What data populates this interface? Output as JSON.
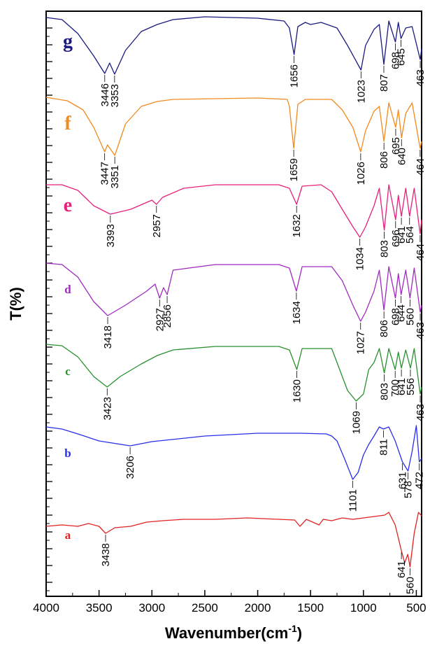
{
  "chart_data": {
    "type": "line",
    "xlabel": "Wavenumber(cm",
    "xlabel_sup": "-1",
    "xlabel_close": ")",
    "ylabel": "T(%)",
    "xlim": [
      4000,
      450
    ],
    "x_reversed": true,
    "xticks": [
      "4000",
      "3500",
      "3000",
      "2500",
      "2000",
      "1500",
      "1000",
      "500"
    ],
    "grid": false,
    "series": [
      {
        "name": "g",
        "color": "#1a1a80",
        "offset": 7,
        "points": [
          [
            4000,
            0.95
          ],
          [
            3850,
            0.92
          ],
          [
            3700,
            0.72
          ],
          [
            3550,
            0.4
          ],
          [
            3446,
            0.15
          ],
          [
            3400,
            0.3
          ],
          [
            3353,
            0.14
          ],
          [
            3250,
            0.48
          ],
          [
            3100,
            0.75
          ],
          [
            2950,
            0.85
          ],
          [
            2800,
            0.92
          ],
          [
            2500,
            0.96
          ],
          [
            2000,
            0.94
          ],
          [
            1750,
            0.9
          ],
          [
            1700,
            0.8
          ],
          [
            1656,
            0.42
          ],
          [
            1620,
            0.82
          ],
          [
            1550,
            0.88
          ],
          [
            1500,
            0.85
          ],
          [
            1400,
            0.88
          ],
          [
            1250,
            0.8
          ],
          [
            1150,
            0.55
          ],
          [
            1023,
            0.2
          ],
          [
            980,
            0.55
          ],
          [
            900,
            0.78
          ],
          [
            850,
            0.85
          ],
          [
            807,
            0.28
          ],
          [
            760,
            0.9
          ],
          [
            698,
            0.6
          ],
          [
            670,
            0.88
          ],
          [
            645,
            0.65
          ],
          [
            600,
            0.8
          ],
          [
            540,
            0.82
          ],
          [
            463,
            0.35
          ],
          [
            450,
            0.5
          ]
        ]
      },
      {
        "name": "f",
        "color": "#f28a1e",
        "offset": 6,
        "points": [
          [
            4000,
            0.98
          ],
          [
            3800,
            0.93
          ],
          [
            3650,
            0.8
          ],
          [
            3550,
            0.55
          ],
          [
            3447,
            0.2
          ],
          [
            3420,
            0.3
          ],
          [
            3351,
            0.15
          ],
          [
            3250,
            0.6
          ],
          [
            3100,
            0.85
          ],
          [
            2950,
            0.92
          ],
          [
            2800,
            0.95
          ],
          [
            2000,
            0.97
          ],
          [
            1720,
            0.95
          ],
          [
            1700,
            0.85
          ],
          [
            1659,
            0.25
          ],
          [
            1620,
            0.88
          ],
          [
            1550,
            0.95
          ],
          [
            1300,
            0.95
          ],
          [
            1200,
            0.8
          ],
          [
            1100,
            0.55
          ],
          [
            1026,
            0.2
          ],
          [
            980,
            0.5
          ],
          [
            900,
            0.78
          ],
          [
            850,
            0.85
          ],
          [
            806,
            0.35
          ],
          [
            760,
            0.9
          ],
          [
            695,
            0.55
          ],
          [
            670,
            0.8
          ],
          [
            640,
            0.4
          ],
          [
            600,
            0.75
          ],
          [
            540,
            0.9
          ],
          [
            464,
            0.25
          ],
          [
            450,
            0.35
          ]
        ]
      },
      {
        "name": "e",
        "color": "#e8207a",
        "offset": 5,
        "points": [
          [
            4000,
            0.9
          ],
          [
            3850,
            0.9
          ],
          [
            3700,
            0.82
          ],
          [
            3550,
            0.6
          ],
          [
            3393,
            0.48
          ],
          [
            3200,
            0.55
          ],
          [
            3000,
            0.68
          ],
          [
            2957,
            0.62
          ],
          [
            2900,
            0.72
          ],
          [
            2700,
            0.85
          ],
          [
            2400,
            0.9
          ],
          [
            1800,
            0.9
          ],
          [
            1700,
            0.85
          ],
          [
            1632,
            0.62
          ],
          [
            1580,
            0.88
          ],
          [
            1400,
            0.9
          ],
          [
            1300,
            0.8
          ],
          [
            1200,
            0.55
          ],
          [
            1100,
            0.3
          ],
          [
            1034,
            0.15
          ],
          [
            980,
            0.3
          ],
          [
            900,
            0.6
          ],
          [
            850,
            0.85
          ],
          [
            803,
            0.25
          ],
          [
            760,
            0.9
          ],
          [
            696,
            0.4
          ],
          [
            670,
            0.75
          ],
          [
            641,
            0.45
          ],
          [
            600,
            0.85
          ],
          [
            564,
            0.45
          ],
          [
            520,
            0.85
          ],
          [
            464,
            0.2
          ],
          [
            450,
            0.4
          ]
        ]
      },
      {
        "name": "d",
        "color": "#a02ac0",
        "offset": 4,
        "points": [
          [
            4000,
            0.95
          ],
          [
            3850,
            0.93
          ],
          [
            3700,
            0.75
          ],
          [
            3550,
            0.4
          ],
          [
            3418,
            0.2
          ],
          [
            3250,
            0.35
          ],
          [
            3050,
            0.55
          ],
          [
            2970,
            0.65
          ],
          [
            2927,
            0.45
          ],
          [
            2890,
            0.6
          ],
          [
            2856,
            0.5
          ],
          [
            2800,
            0.85
          ],
          [
            2400,
            0.93
          ],
          [
            1800,
            0.93
          ],
          [
            1700,
            0.88
          ],
          [
            1634,
            0.55
          ],
          [
            1580,
            0.9
          ],
          [
            1300,
            0.9
          ],
          [
            1200,
            0.7
          ],
          [
            1100,
            0.35
          ],
          [
            1027,
            0.12
          ],
          [
            980,
            0.25
          ],
          [
            900,
            0.55
          ],
          [
            850,
            0.85
          ],
          [
            806,
            0.28
          ],
          [
            760,
            0.9
          ],
          [
            698,
            0.45
          ],
          [
            670,
            0.8
          ],
          [
            644,
            0.5
          ],
          [
            600,
            0.85
          ],
          [
            560,
            0.45
          ],
          [
            520,
            0.88
          ],
          [
            463,
            0.25
          ],
          [
            450,
            0.35
          ]
        ]
      },
      {
        "name": "c",
        "color": "#27902f",
        "offset": 3,
        "points": [
          [
            4000,
            0.96
          ],
          [
            3850,
            0.94
          ],
          [
            3700,
            0.78
          ],
          [
            3550,
            0.5
          ],
          [
            3423,
            0.35
          ],
          [
            3300,
            0.5
          ],
          [
            3100,
            0.68
          ],
          [
            2950,
            0.8
          ],
          [
            2800,
            0.88
          ],
          [
            2400,
            0.93
          ],
          [
            1800,
            0.93
          ],
          [
            1700,
            0.88
          ],
          [
            1630,
            0.6
          ],
          [
            1580,
            0.9
          ],
          [
            1300,
            0.9
          ],
          [
            1250,
            0.7
          ],
          [
            1150,
            0.3
          ],
          [
            1069,
            0.15
          ],
          [
            1000,
            0.25
          ],
          [
            950,
            0.6
          ],
          [
            900,
            0.7
          ],
          [
            850,
            0.9
          ],
          [
            803,
            0.55
          ],
          [
            760,
            0.9
          ],
          [
            700,
            0.6
          ],
          [
            670,
            0.85
          ],
          [
            641,
            0.62
          ],
          [
            600,
            0.88
          ],
          [
            556,
            0.62
          ],
          [
            520,
            0.9
          ],
          [
            463,
            0.25
          ],
          [
            450,
            0.35
          ]
        ]
      },
      {
        "name": "b",
        "color": "#2a2ee8",
        "offset": 2,
        "points": [
          [
            4000,
            0.95
          ],
          [
            3850,
            0.92
          ],
          [
            3700,
            0.85
          ],
          [
            3500,
            0.75
          ],
          [
            3206,
            0.68
          ],
          [
            3000,
            0.74
          ],
          [
            2500,
            0.82
          ],
          [
            2000,
            0.86
          ],
          [
            1600,
            0.86
          ],
          [
            1350,
            0.85
          ],
          [
            1300,
            0.82
          ],
          [
            1250,
            0.75
          ],
          [
            1180,
            0.5
          ],
          [
            1101,
            0.2
          ],
          [
            1050,
            0.3
          ],
          [
            1000,
            0.55
          ],
          [
            950,
            0.7
          ],
          [
            900,
            0.82
          ],
          [
            850,
            0.95
          ],
          [
            811,
            0.92
          ],
          [
            760,
            0.95
          ],
          [
            700,
            0.75
          ],
          [
            631,
            0.45
          ],
          [
            578,
            0.32
          ],
          [
            540,
            0.6
          ],
          [
            500,
            0.97
          ],
          [
            472,
            0.45
          ],
          [
            450,
            0.5
          ]
        ]
      },
      {
        "name": "a",
        "color": "#e02222",
        "offset": 1,
        "points": [
          [
            4000,
            0.7
          ],
          [
            3850,
            0.72
          ],
          [
            3700,
            0.7
          ],
          [
            3600,
            0.74
          ],
          [
            3500,
            0.7
          ],
          [
            3438,
            0.6
          ],
          [
            3350,
            0.68
          ],
          [
            3200,
            0.7
          ],
          [
            3050,
            0.76
          ],
          [
            2900,
            0.78
          ],
          [
            2700,
            0.8
          ],
          [
            2400,
            0.8
          ],
          [
            2100,
            0.82
          ],
          [
            1800,
            0.8
          ],
          [
            1650,
            0.79
          ],
          [
            1600,
            0.7
          ],
          [
            1540,
            0.8
          ],
          [
            1420,
            0.72
          ],
          [
            1380,
            0.8
          ],
          [
            1300,
            0.78
          ],
          [
            1200,
            0.82
          ],
          [
            1100,
            0.8
          ],
          [
            1000,
            0.82
          ],
          [
            900,
            0.84
          ],
          [
            800,
            0.86
          ],
          [
            760,
            0.9
          ],
          [
            700,
            0.72
          ],
          [
            641,
            0.35
          ],
          [
            610,
            0.18
          ],
          [
            580,
            0.3
          ],
          [
            560,
            0.12
          ],
          [
            520,
            0.6
          ],
          [
            480,
            0.9
          ],
          [
            450,
            0.85
          ]
        ]
      }
    ],
    "peak_labels": [
      {
        "series": "g",
        "text": "3446",
        "x": 3446
      },
      {
        "series": "g",
        "text": "3353",
        "x": 3353
      },
      {
        "series": "g",
        "text": "1656",
        "x": 1656
      },
      {
        "series": "g",
        "text": "1023",
        "x": 1023
      },
      {
        "series": "g",
        "text": "807",
        "x": 807
      },
      {
        "series": "g",
        "text": "698",
        "x": 698
      },
      {
        "series": "g",
        "text": "645",
        "x": 645
      },
      {
        "series": "g",
        "text": "463",
        "x": 463
      },
      {
        "series": "f",
        "text": "3447",
        "x": 3447
      },
      {
        "series": "f",
        "text": "3351",
        "x": 3351
      },
      {
        "series": "f",
        "text": "1659",
        "x": 1659
      },
      {
        "series": "f",
        "text": "1026",
        "x": 1026
      },
      {
        "series": "f",
        "text": "806",
        "x": 806
      },
      {
        "series": "f",
        "text": "695",
        "x": 695
      },
      {
        "series": "f",
        "text": "640",
        "x": 640
      },
      {
        "series": "f",
        "text": "464",
        "x": 464
      },
      {
        "series": "e",
        "text": "3393",
        "x": 3393
      },
      {
        "series": "e",
        "text": "2957",
        "x": 2957
      },
      {
        "series": "e",
        "text": "1632",
        "x": 1632
      },
      {
        "series": "e",
        "text": "1034",
        "x": 1034
      },
      {
        "series": "e",
        "text": "803",
        "x": 803
      },
      {
        "series": "e",
        "text": "696",
        "x": 696
      },
      {
        "series": "e",
        "text": "641",
        "x": 641
      },
      {
        "series": "e",
        "text": "564",
        "x": 564
      },
      {
        "series": "e",
        "text": "464",
        "x": 464
      },
      {
        "series": "d",
        "text": "3418",
        "x": 3418
      },
      {
        "series": "d",
        "text": "2927",
        "x": 2927
      },
      {
        "series": "d",
        "text": "2856",
        "x": 2856
      },
      {
        "series": "d",
        "text": "1634",
        "x": 1634
      },
      {
        "series": "d",
        "text": "1027",
        "x": 1027
      },
      {
        "series": "d",
        "text": "806",
        "x": 806
      },
      {
        "series": "d",
        "text": "698",
        "x": 698
      },
      {
        "series": "d",
        "text": "644",
        "x": 644
      },
      {
        "series": "d",
        "text": "560",
        "x": 560
      },
      {
        "series": "d",
        "text": "463",
        "x": 463
      },
      {
        "series": "c",
        "text": "3423",
        "x": 3423
      },
      {
        "series": "c",
        "text": "1630",
        "x": 1630
      },
      {
        "series": "c",
        "text": "1069",
        "x": 1069
      },
      {
        "series": "c",
        "text": "803",
        "x": 803
      },
      {
        "series": "c",
        "text": "700",
        "x": 700
      },
      {
        "series": "c",
        "text": "641",
        "x": 641
      },
      {
        "series": "c",
        "text": "556",
        "x": 556
      },
      {
        "series": "c",
        "text": "463",
        "x": 463
      },
      {
        "series": "b",
        "text": "3206",
        "x": 3206
      },
      {
        "series": "b",
        "text": "1101",
        "x": 1101
      },
      {
        "series": "b",
        "text": "811",
        "x": 811
      },
      {
        "series": "b",
        "text": "631",
        "x": 631
      },
      {
        "series": "b",
        "text": "578",
        "x": 578
      },
      {
        "series": "b",
        "text": "472",
        "x": 472
      },
      {
        "series": "a",
        "text": "3438",
        "x": 3438
      },
      {
        "series": "a",
        "text": "641",
        "x": 641
      },
      {
        "series": "a",
        "text": "560",
        "x": 560
      }
    ]
  }
}
